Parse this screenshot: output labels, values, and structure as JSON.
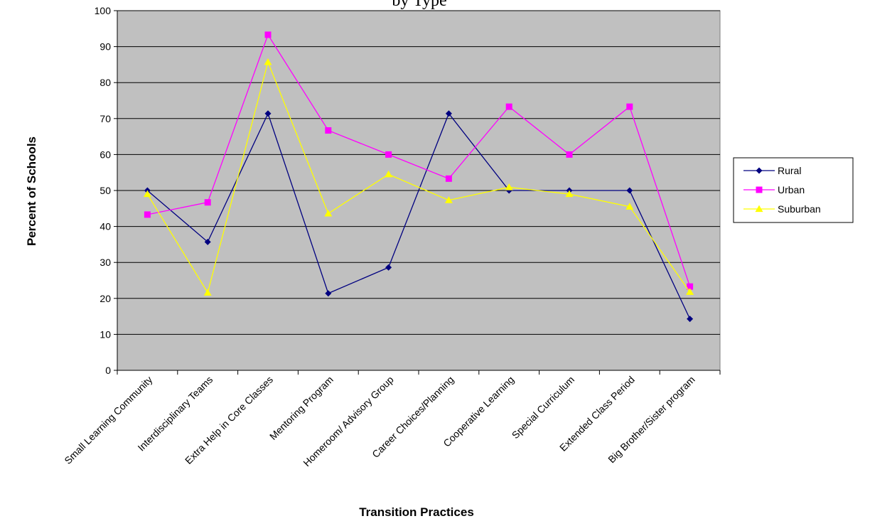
{
  "chart_data": {
    "type": "line",
    "title": "by Type",
    "xlabel": "Transition Practices",
    "ylabel": "Percent of Schools",
    "ylim": [
      0,
      100
    ],
    "yticks": [
      0,
      10,
      20,
      30,
      40,
      50,
      60,
      70,
      80,
      90,
      100
    ],
    "grid": true,
    "legend_position": "right",
    "categories": [
      "Small Learning Community",
      "Interdisciplinary Teams",
      "Extra Help in Core Classes",
      "Mentoring Program",
      "Homeroom/ Advisory Group",
      "Career Choices/Planning",
      "Cooperative Learning",
      "Special Curriculum",
      "Extended Class Period",
      "Big Brother/Sister program"
    ],
    "series": [
      {
        "name": "Rural",
        "color": "#000080",
        "marker": "diamond",
        "values": [
          50,
          35.7,
          71.4,
          21.4,
          28.6,
          71.4,
          50,
          50,
          50,
          14.3
        ]
      },
      {
        "name": "Urban",
        "color": "#ff00ff",
        "marker": "square",
        "values": [
          43.3,
          46.7,
          93.3,
          66.7,
          60,
          53.3,
          73.3,
          60,
          73.3,
          23.3
        ]
      },
      {
        "name": "Suburban",
        "color": "#ffff00",
        "marker": "triangle",
        "values": [
          49,
          21.6,
          85.7,
          43.6,
          54.5,
          47.3,
          50.9,
          49,
          45.5,
          21.8
        ]
      }
    ]
  }
}
